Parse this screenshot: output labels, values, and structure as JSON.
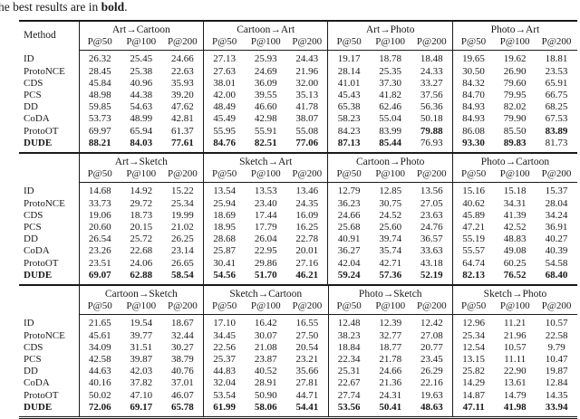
{
  "caption": {
    "prefix": "he best results are in ",
    "bold_word": "bold",
    "suffix": "."
  },
  "chart_data": {
    "type": "table",
    "metric_subheaders": [
      "P@50",
      "P@100",
      "P@200"
    ],
    "method_header": "Method",
    "sections": [
      {
        "groups": [
          "Art→Cartoon",
          "Cartoon→Art",
          "Art→Photo",
          "Photo→Art"
        ],
        "show_method_header": true,
        "rows": [
          {
            "method": "ID",
            "bold_method": false,
            "values": [
              "26.32",
              "25.45",
              "24.66",
              "27.13",
              "25.93",
              "24.43",
              "19.17",
              "18.78",
              "18.48",
              "19.65",
              "19.62",
              "18.81"
            ],
            "bold": []
          },
          {
            "method": "ProtoNCE",
            "bold_method": false,
            "values": [
              "28.45",
              "25.38",
              "22.63",
              "27.63",
              "24.69",
              "21.96",
              "28.14",
              "25.35",
              "24.33",
              "30.50",
              "26.90",
              "23.53"
            ],
            "bold": []
          },
          {
            "method": "CDS",
            "bold_method": false,
            "values": [
              "45.84",
              "40.96",
              "35.93",
              "38.01",
              "36.09",
              "32.00",
              "41.01",
              "37.30",
              "33.27",
              "84.32",
              "79.60",
              "65.91"
            ],
            "bold": []
          },
          {
            "method": "PCS",
            "bold_method": false,
            "values": [
              "48.98",
              "44.38",
              "39.20",
              "42.00",
              "39.55",
              "35.13",
              "45.43",
              "41.82",
              "37.56",
              "84.70",
              "79.95",
              "66.75"
            ],
            "bold": []
          },
          {
            "method": "DD",
            "bold_method": false,
            "values": [
              "59.85",
              "54.63",
              "47.62",
              "48.49",
              "46.60",
              "41.78",
              "65.38",
              "62.46",
              "56.36",
              "84.93",
              "82.02",
              "68.25"
            ],
            "bold": []
          },
          {
            "method": "CoDA",
            "bold_method": false,
            "values": [
              "53.73",
              "48.99",
              "42.81",
              "45.49",
              "42.98",
              "38.07",
              "58.23",
              "55.04",
              "50.18",
              "84.93",
              "79.90",
              "67.53"
            ],
            "bold": []
          },
          {
            "method": "ProtoOT",
            "bold_method": false,
            "values": [
              "69.97",
              "65.94",
              "61.37",
              "55.95",
              "55.91",
              "55.08",
              "84.23",
              "83.99",
              "79.88",
              "86.08",
              "85.50",
              "83.89"
            ],
            "bold": [
              8,
              11
            ]
          },
          {
            "method": "DUDE",
            "bold_method": true,
            "values": [
              "88.21",
              "84.03",
              "77.61",
              "84.76",
              "82.51",
              "77.06",
              "87.13",
              "85.44",
              "76.93",
              "93.30",
              "89.83",
              "81.73"
            ],
            "bold": [
              0,
              1,
              2,
              3,
              4,
              5,
              6,
              7,
              9,
              10
            ]
          }
        ]
      },
      {
        "groups": [
          "Art→Sketch",
          "Sketch→Art",
          "Cartoon→Photo",
          "Photo→Cartoon"
        ],
        "show_method_header": false,
        "rows": [
          {
            "method": "ID",
            "bold_method": false,
            "values": [
              "14.68",
              "14.92",
              "15.22",
              "13.54",
              "13.53",
              "13.46",
              "12.79",
              "12.85",
              "13.56",
              "15.16",
              "15.18",
              "15.37"
            ],
            "bold": []
          },
          {
            "method": "ProtoNCE",
            "bold_method": false,
            "values": [
              "33.73",
              "29.72",
              "25.34",
              "25.94",
              "23.40",
              "24.35",
              "36.23",
              "30.75",
              "27.05",
              "40.62",
              "34.31",
              "28.04"
            ],
            "bold": []
          },
          {
            "method": "CDS",
            "bold_method": false,
            "values": [
              "19.06",
              "18.73",
              "19.99",
              "18.69",
              "17.44",
              "16.09",
              "24.66",
              "24.52",
              "23.63",
              "45.89",
              "41.39",
              "34.24"
            ],
            "bold": []
          },
          {
            "method": "PCS",
            "bold_method": false,
            "values": [
              "20.60",
              "20.15",
              "21.02",
              "18.95",
              "17.79",
              "16.25",
              "25.68",
              "25.60",
              "24.76",
              "47.21",
              "42.52",
              "36.91"
            ],
            "bold": []
          },
          {
            "method": "DD",
            "bold_method": false,
            "values": [
              "26.54",
              "25.72",
              "26.25",
              "28.68",
              "26.04",
              "22.78",
              "40.91",
              "39.74",
              "36.57",
              "55.19",
              "48.83",
              "40.27"
            ],
            "bold": []
          },
          {
            "method": "CoDA",
            "bold_method": false,
            "values": [
              "23.26",
              "22.68",
              "23.14",
              "25.87",
              "22.95",
              "20.01",
              "36.27",
              "35.74",
              "33.63",
              "55.57",
              "49.08",
              "40.39"
            ],
            "bold": []
          },
          {
            "method": "ProtoOT",
            "bold_method": false,
            "values": [
              "23.51",
              "24.06",
              "26.65",
              "30.41",
              "29.86",
              "27.16",
              "42.04",
              "42.71",
              "43.18",
              "64.74",
              "60.25",
              "54.58"
            ],
            "bold": []
          },
          {
            "method": "DUDE",
            "bold_method": true,
            "values": [
              "69.07",
              "62.88",
              "58.54",
              "54.56",
              "51.70",
              "46.21",
              "59.24",
              "57.36",
              "52.19",
              "82.13",
              "76.52",
              "68.40"
            ],
            "bold": [
              0,
              1,
              2,
              3,
              4,
              5,
              6,
              7,
              8,
              9,
              10,
              11
            ]
          }
        ]
      },
      {
        "groups": [
          "Cartoon→Sketch",
          "Sketch→Cartoon",
          "Photo→Sketch",
          "Sketch→Photo"
        ],
        "show_method_header": false,
        "rows": [
          {
            "method": "ID",
            "bold_method": false,
            "values": [
              "21.65",
              "19.54",
              "18.67",
              "17.10",
              "16.42",
              "16.55",
              "12.48",
              "12.39",
              "12.42",
              "12.96",
              "11.21",
              "10.57"
            ],
            "bold": []
          },
          {
            "method": "ProtoNCE",
            "bold_method": false,
            "values": [
              "45.61",
              "39.77",
              "32.44",
              "34.45",
              "30.07",
              "27.50",
              "38.23",
              "32.77",
              "27.08",
              "25.34",
              "21.96",
              "22.58"
            ],
            "bold": []
          },
          {
            "method": "CDS",
            "bold_method": false,
            "values": [
              "34.09",
              "31.51",
              "30.27",
              "22.56",
              "21.08",
              "20.54",
              "18.84",
              "18.77",
              "20.77",
              "12.54",
              "10.57",
              "9.79"
            ],
            "bold": []
          },
          {
            "method": "PCS",
            "bold_method": false,
            "values": [
              "42.58",
              "39.87",
              "38.79",
              "25.37",
              "23.87",
              "23.21",
              "22.34",
              "21.78",
              "23.45",
              "13.15",
              "11.11",
              "10.47"
            ],
            "bold": []
          },
          {
            "method": "DD",
            "bold_method": false,
            "values": [
              "44.63",
              "42.03",
              "40.76",
              "44.83",
              "40.52",
              "35.66",
              "25.31",
              "24.66",
              "26.29",
              "25.82",
              "22.90",
              "19.87"
            ],
            "bold": []
          },
          {
            "method": "CoDA",
            "bold_method": false,
            "values": [
              "40.16",
              "37.82",
              "37.01",
              "32.04",
              "28.91",
              "27.81",
              "22.67",
              "21.36",
              "22.16",
              "14.29",
              "13.61",
              "12.84"
            ],
            "bold": []
          },
          {
            "method": "ProtoOT",
            "bold_method": false,
            "values": [
              "50.02",
              "47.10",
              "46.07",
              "53.54",
              "50.90",
              "44.71",
              "27.74",
              "24.31",
              "19.63",
              "14.87",
              "14.79",
              "14.35"
            ],
            "bold": []
          },
          {
            "method": "DUDE",
            "bold_method": true,
            "values": [
              "72.06",
              "69.17",
              "65.78",
              "61.99",
              "58.06",
              "54.41",
              "53.56",
              "50.41",
              "48.63",
              "47.11",
              "41.98",
              "33.94"
            ],
            "bold": [
              0,
              1,
              2,
              3,
              4,
              5,
              6,
              7,
              8,
              9,
              10,
              11
            ]
          }
        ]
      }
    ]
  }
}
